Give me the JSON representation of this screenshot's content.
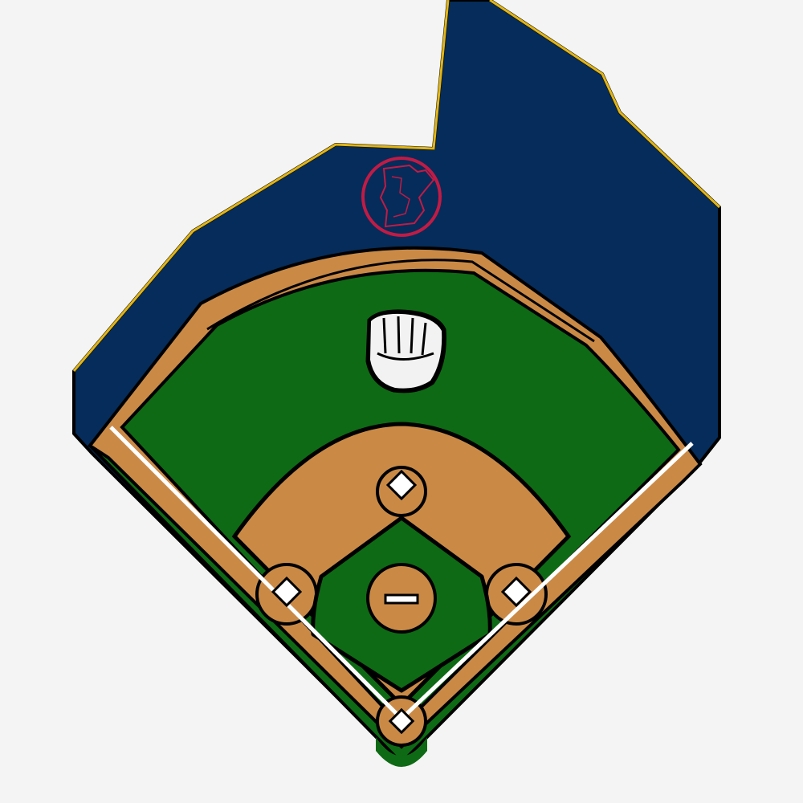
{
  "diagram": {
    "kind": "baseball-field-diagram",
    "colors": {
      "background": "#f4f4f4",
      "stands": "#052c5a",
      "stands_trim": "#e2b514",
      "outline": "#000000",
      "grass": "#0e6a14",
      "dirt": "#ca8a46",
      "chalk": "#ffffff",
      "logo_ring": "#c11b45",
      "glove_logo": "#f2f2f2"
    },
    "icons": {
      "stands_logo": "state-outline-circle-logo",
      "outfield_logo": "baseball-glove-logo"
    },
    "bases": [
      "home-plate",
      "first-base",
      "second-base",
      "third-base"
    ]
  }
}
